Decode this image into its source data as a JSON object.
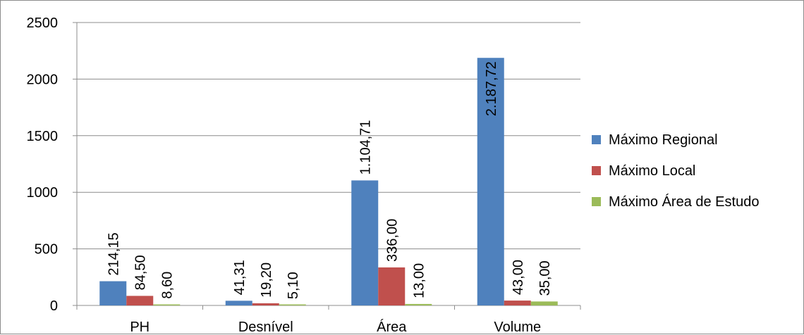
{
  "chart_data": {
    "type": "bar",
    "title": "",
    "xlabel": "",
    "ylabel": "",
    "categories": [
      "PH",
      "Desnível",
      "Área",
      "Volume"
    ],
    "ylim": [
      0,
      2500
    ],
    "yticks": [
      0,
      500,
      1000,
      1500,
      2000,
      2500
    ],
    "grid": true,
    "legend_position": "right",
    "series": [
      {
        "name": "Máximo Regional",
        "color": "#4f81bd",
        "values": [
          214.15,
          41.31,
          1104.71,
          2187.72
        ],
        "labels": [
          "214,15",
          "41,31",
          "1.104,71",
          "2.187,72"
        ]
      },
      {
        "name": "Máximo Local",
        "color": "#c0504d",
        "values": [
          84.5,
          19.2,
          336.0,
          43.0
        ],
        "labels": [
          "84,50",
          "19,20",
          "336,00",
          "43,00"
        ]
      },
      {
        "name": "Máximo Área de Estudo",
        "color": "#9bbb59",
        "values": [
          8.6,
          5.1,
          13.0,
          35.0
        ],
        "labels": [
          "8,60",
          "5,10",
          "13,00",
          "35,00"
        ]
      }
    ]
  }
}
